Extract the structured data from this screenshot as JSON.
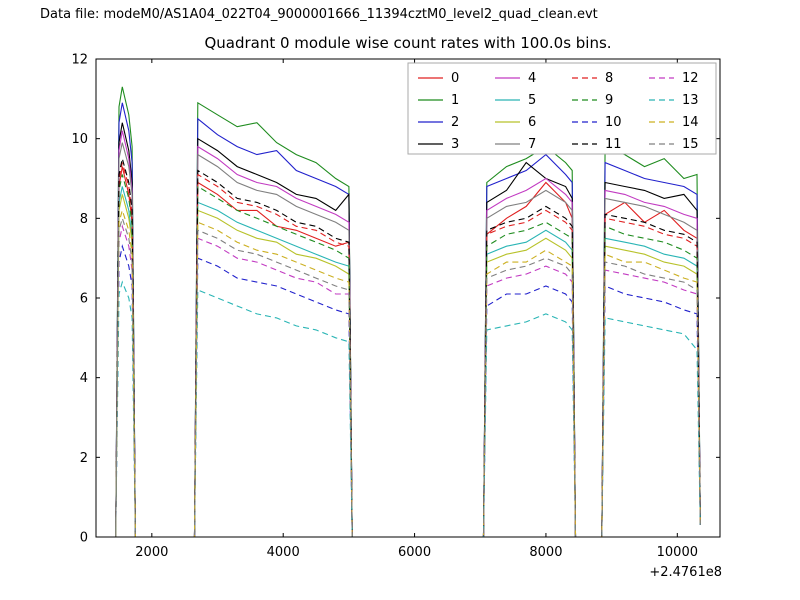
{
  "header": {
    "data_file": "Data file: modeM0/AS1A04_022T04_9000001666_11394cztM0_level2_quad_clean.evt"
  },
  "chart_data": {
    "type": "line",
    "title": "Quadrant 0 module wise count rates with 100.0s bins.",
    "x_offset_label": "+2.4761e8",
    "xlabel": "",
    "ylabel": "",
    "xlim": [
      1150,
      10650
    ],
    "ylim": [
      0,
      12
    ],
    "xticks": [
      2000,
      4000,
      6000,
      8000,
      10000
    ],
    "yticks": [
      0,
      2,
      4,
      6,
      8,
      10,
      12
    ],
    "grid": false,
    "legend_position": "upper right inside, 4 columns",
    "x": [
      1450,
      1500,
      1550,
      1650,
      1700,
      1750,
      2650,
      2700,
      3000,
      3300,
      3600,
      3900,
      4200,
      4500,
      4800,
      5000,
      5050,
      7050,
      7100,
      7400,
      7700,
      8000,
      8300,
      8400,
      8450,
      8850,
      8900,
      9200,
      9500,
      9800,
      10100,
      10300,
      10350
    ],
    "series": [
      {
        "name": "0",
        "color": "#e02020",
        "dashed": false,
        "values": [
          0,
          8.8,
          9.3,
          8.6,
          7.9,
          0,
          0,
          8.9,
          8.6,
          8.2,
          8.2,
          7.8,
          7.7,
          7.5,
          7.3,
          7.4,
          0,
          0,
          7.6,
          8.0,
          8.3,
          8.9,
          8.4,
          8.0,
          0,
          0,
          8.1,
          8.4,
          7.9,
          8.2,
          7.7,
          7.5,
          0.4
        ]
      },
      {
        "name": "1",
        "color": "#1f8c1f",
        "dashed": false,
        "values": [
          0,
          10.8,
          11.3,
          10.6,
          9.8,
          0,
          0,
          10.9,
          10.6,
          10.3,
          10.4,
          9.9,
          9.6,
          9.4,
          9.0,
          8.8,
          0,
          0,
          8.9,
          9.3,
          9.5,
          9.8,
          9.4,
          9.2,
          0,
          0,
          9.8,
          9.6,
          9.3,
          9.5,
          9.0,
          9.1,
          0.4
        ]
      },
      {
        "name": "2",
        "color": "#2121cc",
        "dashed": false,
        "values": [
          0,
          10.4,
          10.9,
          10.2,
          9.4,
          0,
          0,
          10.5,
          10.1,
          9.8,
          9.6,
          9.7,
          9.2,
          9.0,
          8.8,
          8.6,
          0,
          0,
          8.8,
          9.0,
          9.2,
          9.6,
          9.1,
          8.9,
          0,
          0,
          9.4,
          9.2,
          9.0,
          8.9,
          8.8,
          8.6,
          0.4
        ]
      },
      {
        "name": "3",
        "color": "#000000",
        "dashed": false,
        "values": [
          0,
          9.9,
          10.4,
          9.7,
          8.9,
          0,
          0,
          10.0,
          9.7,
          9.3,
          9.1,
          8.9,
          8.6,
          8.5,
          8.2,
          8.6,
          0,
          0,
          8.4,
          8.7,
          9.4,
          9.0,
          8.8,
          8.5,
          0,
          0,
          8.9,
          8.8,
          8.7,
          8.5,
          8.6,
          8.2,
          0.4
        ]
      },
      {
        "name": "4",
        "color": "#c23bc2",
        "dashed": false,
        "values": [
          0,
          9.7,
          10.2,
          9.5,
          8.7,
          0,
          0,
          9.8,
          9.5,
          9.1,
          8.9,
          8.8,
          8.5,
          8.3,
          8.1,
          7.9,
          0,
          0,
          8.2,
          8.5,
          8.7,
          9.0,
          8.6,
          8.4,
          0,
          0,
          8.7,
          8.6,
          8.4,
          8.3,
          8.1,
          8.0,
          0.4
        ]
      },
      {
        "name": "5",
        "color": "#2ab5b5",
        "dashed": false,
        "values": [
          0,
          8.4,
          8.8,
          8.2,
          7.5,
          0,
          0,
          8.4,
          8.2,
          7.9,
          7.7,
          7.5,
          7.3,
          7.1,
          6.9,
          6.8,
          0,
          0,
          7.1,
          7.3,
          7.4,
          7.7,
          7.4,
          7.2,
          0,
          0,
          7.5,
          7.4,
          7.3,
          7.1,
          7.0,
          6.8,
          0.3
        ]
      },
      {
        "name": "6",
        "color": "#b8c22a",
        "dashed": false,
        "values": [
          0,
          8.2,
          8.6,
          8.0,
          7.4,
          0,
          0,
          8.2,
          8.0,
          7.7,
          7.5,
          7.4,
          7.1,
          7.0,
          6.8,
          6.6,
          0,
          0,
          6.9,
          7.1,
          7.2,
          7.5,
          7.2,
          7.0,
          0,
          0,
          7.3,
          7.2,
          7.1,
          6.9,
          6.8,
          6.6,
          0.3
        ]
      },
      {
        "name": "7",
        "color": "#808080",
        "dashed": false,
        "values": [
          0,
          9.5,
          9.9,
          9.3,
          8.6,
          0,
          0,
          9.6,
          9.3,
          8.9,
          8.7,
          8.6,
          8.3,
          8.1,
          7.9,
          7.7,
          0,
          0,
          8.0,
          8.3,
          8.4,
          8.7,
          8.4,
          8.2,
          0,
          0,
          8.5,
          8.4,
          8.3,
          8.1,
          7.9,
          7.7,
          0.4
        ]
      },
      {
        "name": "8",
        "color": "#e02020",
        "dashed": true,
        "values": [
          0,
          9.0,
          9.4,
          8.8,
          8.1,
          0,
          0,
          9.1,
          8.8,
          8.4,
          8.3,
          8.1,
          7.8,
          7.7,
          7.4,
          7.3,
          0,
          0,
          7.6,
          7.8,
          7.9,
          8.2,
          7.9,
          7.7,
          0,
          0,
          8.0,
          7.9,
          7.8,
          7.6,
          7.5,
          7.3,
          0.4
        ]
      },
      {
        "name": "9",
        "color": "#1f8c1f",
        "dashed": true,
        "values": [
          0,
          8.7,
          9.1,
          8.5,
          7.8,
          0,
          0,
          8.8,
          8.5,
          8.2,
          8.0,
          7.8,
          7.6,
          7.4,
          7.2,
          7.0,
          0,
          0,
          7.3,
          7.6,
          7.7,
          7.9,
          7.6,
          7.5,
          0,
          0,
          7.8,
          7.6,
          7.5,
          7.4,
          7.2,
          7.0,
          0.3
        ]
      },
      {
        "name": "10",
        "color": "#2121cc",
        "dashed": true,
        "values": [
          0,
          6.9,
          7.3,
          6.8,
          6.3,
          0,
          0,
          7.0,
          6.8,
          6.5,
          6.4,
          6.3,
          6.1,
          5.9,
          5.7,
          5.6,
          0,
          0,
          5.8,
          6.1,
          6.1,
          6.3,
          6.1,
          5.9,
          0,
          0,
          6.3,
          6.1,
          6.0,
          5.9,
          5.7,
          5.6,
          0.3
        ]
      },
      {
        "name": "11",
        "color": "#000000",
        "dashed": true,
        "values": [
          0,
          9.1,
          9.5,
          8.9,
          8.2,
          0,
          0,
          9.2,
          8.9,
          8.5,
          8.4,
          8.2,
          7.9,
          7.8,
          7.5,
          7.4,
          0,
          0,
          7.7,
          7.9,
          8.0,
          8.3,
          8.0,
          7.8,
          0,
          0,
          8.1,
          8.0,
          7.9,
          7.7,
          7.6,
          7.4,
          0.4
        ]
      },
      {
        "name": "12",
        "color": "#c23bc2",
        "dashed": true,
        "values": [
          0,
          7.4,
          7.8,
          7.3,
          6.7,
          0,
          0,
          7.5,
          7.3,
          7.0,
          6.9,
          6.7,
          6.5,
          6.4,
          6.1,
          6.1,
          0,
          0,
          6.3,
          6.5,
          6.6,
          6.8,
          6.6,
          6.4,
          0,
          0,
          6.7,
          6.6,
          6.5,
          6.4,
          6.2,
          6.1,
          0.3
        ]
      },
      {
        "name": "13",
        "color": "#2ab5b5",
        "dashed": true,
        "values": [
          0,
          6.1,
          6.4,
          6.0,
          5.5,
          0,
          0,
          6.2,
          6.0,
          5.8,
          5.6,
          5.5,
          5.3,
          5.2,
          5.0,
          4.9,
          0,
          0,
          5.2,
          5.3,
          5.4,
          5.6,
          5.4,
          5.2,
          0,
          0,
          5.5,
          5.4,
          5.3,
          5.2,
          5.1,
          4.7,
          0.3
        ]
      },
      {
        "name": "14",
        "color": "#ccb022",
        "dashed": true,
        "values": [
          0,
          7.9,
          8.2,
          7.7,
          7.1,
          0,
          0,
          7.9,
          7.7,
          7.4,
          7.2,
          7.1,
          6.9,
          6.7,
          6.5,
          6.4,
          0,
          0,
          6.6,
          6.9,
          6.9,
          7.2,
          6.9,
          6.8,
          0,
          0,
          7.1,
          6.9,
          6.9,
          6.7,
          6.5,
          6.4,
          0.3
        ]
      },
      {
        "name": "15",
        "color": "#808080",
        "dashed": true,
        "values": [
          0,
          7.7,
          8.0,
          7.5,
          6.9,
          0,
          0,
          7.7,
          7.5,
          7.2,
          7.1,
          6.9,
          6.7,
          6.5,
          6.3,
          6.2,
          0,
          0,
          6.5,
          6.7,
          6.8,
          7.0,
          6.8,
          6.6,
          0,
          0,
          6.9,
          6.8,
          6.6,
          6.5,
          6.4,
          6.2,
          0.3
        ]
      }
    ]
  }
}
